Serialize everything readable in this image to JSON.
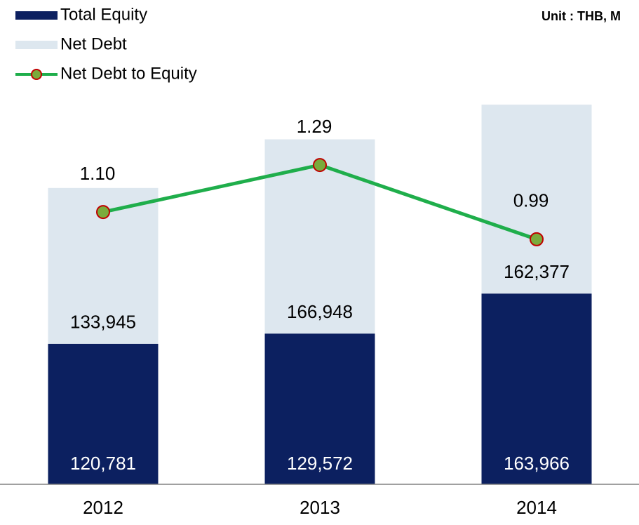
{
  "chart_data": {
    "type": "bar",
    "stacked": true,
    "subtitle": "Unit : THB, M",
    "categories": [
      "2012",
      "2013",
      "2014"
    ],
    "series": [
      {
        "name": "Total Equity",
        "color": "#0c2060",
        "values": [
          120781,
          129572,
          163966
        ],
        "value_labels": [
          "120,781",
          "129,572",
          "163,966"
        ]
      },
      {
        "name": "Net Debt",
        "color": "#dde7ef",
        "values": [
          133945,
          166948,
          162377
        ],
        "value_labels": [
          "133,945",
          "166,948",
          "162,377"
        ]
      },
      {
        "name": "Net Debt to Equity",
        "type": "line",
        "axis": "y2",
        "color": "#1fae4b",
        "marker_color": "#7aab3c",
        "marker_edge": "#c00000",
        "values": [
          1.1,
          1.29,
          0.99
        ],
        "value_labels": [
          "1.10",
          "1.29",
          "0.99"
        ]
      }
    ],
    "ylim": [
      0,
      400000
    ],
    "y2lim": [
      0,
      1.88
    ]
  }
}
